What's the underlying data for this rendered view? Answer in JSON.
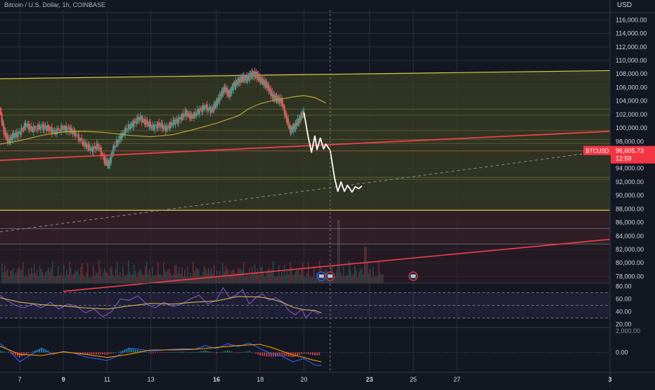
{
  "header": {
    "symbol_title": "Bitcoin / U.S. Dollar, 1h, COINBASE",
    "currency": "USD"
  },
  "price_tag": {
    "symbol": "BTCUSD",
    "price": "96,605.73",
    "countdown": "12:59"
  },
  "colors": {
    "background": "#131722",
    "grid": "#2a2e39",
    "up": "#26a69a",
    "down": "#ef5350",
    "channel": "#d4c94a",
    "zone_fill": "#3a3d22",
    "red_zone_fill": "#3a1f28",
    "support": "#f0414d",
    "projection": "#ffffff",
    "rsi": "#7e57c2",
    "macd_line": "#2962ff",
    "signal_line": "#ff9800",
    "tag": "#f23645"
  },
  "chart_data": [
    {
      "type": "line",
      "panel": "price",
      "y_axis_ticks": [
        "116,000.00",
        "114,000.00",
        "112,000.00",
        "110,000.00",
        "108,000.00",
        "106,000.00",
        "104,000.00",
        "102,000.00",
        "100,000.00",
        "98,000.00",
        "94,000.00",
        "92,000.00",
        "90,000.00",
        "88,000.00",
        "86,000.00",
        "84,000.00",
        "82,000.00",
        "80,000.00",
        "78,000.00"
      ],
      "x_axis_ticks": [
        "7",
        "9",
        "11",
        "13",
        "16",
        "18",
        "20",
        "23",
        "25",
        "27",
        "3"
      ],
      "x_ticks_day": [
        7,
        9,
        11,
        13,
        16,
        18,
        20,
        23,
        25,
        27,
        34
      ],
      "ylim": [
        77000,
        117500
      ],
      "xlim_day": [
        6.1,
        34
      ],
      "series": [
        {
          "role": "price",
          "x_day": [
            6.1,
            6.3,
            6.5,
            6.7,
            7.0,
            7.3,
            7.6,
            8.0,
            8.3,
            8.6,
            9.0,
            9.3,
            9.6,
            10.0,
            10.3,
            10.6,
            10.9,
            11.1,
            11.3,
            11.6,
            11.9,
            12.2,
            12.5,
            12.8,
            13.1,
            13.4,
            13.7,
            14.0,
            14.3,
            14.6,
            14.9,
            15.2,
            15.5,
            15.8,
            16.0,
            16.2,
            16.4,
            16.6,
            16.8,
            17.0,
            17.2,
            17.4,
            17.6,
            17.8,
            18.0,
            18.2,
            18.4,
            18.6,
            18.8,
            19.0,
            19.2,
            19.4,
            19.6,
            19.8,
            20.0
          ],
          "values": [
            103000,
            99500,
            98000,
            98800,
            99200,
            100500,
            99800,
            100200,
            100000,
            99400,
            100000,
            99800,
            99000,
            97500,
            96800,
            97400,
            95200,
            94500,
            97000,
            98500,
            99800,
            100600,
            101500,
            100800,
            100100,
            100500,
            99900,
            100700,
            101200,
            102200,
            101600,
            102500,
            103100,
            102600,
            103600,
            104800,
            105900,
            104900,
            106300,
            106900,
            107400,
            107300,
            107900,
            108000,
            107200,
            106700,
            105900,
            104600,
            104300,
            103900,
            101600,
            99600,
            100200,
            101300,
            102300
          ]
        },
        {
          "role": "moving_average",
          "x_day": [
            6.1,
            7.0,
            8.0,
            9.0,
            10.0,
            11.0,
            12.0,
            13.0,
            14.0,
            15.0,
            16.0,
            17.0,
            17.5,
            18.0,
            18.5,
            19.0,
            19.5,
            20.0,
            20.5,
            21.0
          ],
          "values": [
            97600,
            98100,
            98900,
            99400,
            99500,
            99300,
            98900,
            98700,
            99000,
            99800,
            100700,
            101800,
            102900,
            103600,
            104000,
            104300,
            104600,
            104800,
            104500,
            103700
          ]
        },
        {
          "role": "projection",
          "x_day": [
            20.0,
            20.2,
            20.35,
            20.5,
            20.6,
            20.75,
            20.9,
            21.0,
            21.2,
            21.4,
            21.55,
            21.7,
            21.85,
            22.0,
            22.2,
            22.35,
            22.5,
            22.65
          ],
          "values": [
            102300,
            98600,
            96400,
            98800,
            96800,
            98500,
            96900,
            97600,
            96700,
            92600,
            90600,
            92000,
            90600,
            91500,
            90500,
            91300,
            91000,
            91400
          ]
        }
      ],
      "annotations": {
        "channel_top": [
          {
            "x_day": 6.1,
            "y": 107300
          },
          {
            "x_day": 34,
            "y": 108500
          }
        ],
        "channel_bottom_y": 87800,
        "support_line": [
          {
            "x_day": 6.1,
            "y": 95200
          },
          {
            "x_day": 34,
            "y": 99500
          }
        ],
        "lower_trend": [
          {
            "x_day": 9.0,
            "y": 75800
          },
          {
            "x_day": 34,
            "y": 83500
          }
        ],
        "dashed_trend": [
          {
            "x_day": 6.1,
            "y": 84600
          },
          {
            "x_day": 34,
            "y": 96700
          }
        ],
        "horizontal_levels": [
          102800,
          101900,
          99600,
          98300,
          97700,
          96600,
          92700,
          92400,
          85100,
          82800
        ],
        "cursor_day": 21.2,
        "current_price": 96605.73,
        "event_markers_day": [
          20.8,
          21.2,
          25.0
        ]
      }
    },
    {
      "type": "bar",
      "panel": "volume",
      "note": "volume histogram overlaid at the bottom of the price pane"
    },
    {
      "type": "line",
      "panel": "rsi",
      "y_axis_ticks": [
        "80.00",
        "60.00",
        "40.00",
        "20.00"
      ],
      "ylim": [
        15,
        85
      ],
      "bands": [
        70,
        50,
        30
      ],
      "series": [
        {
          "role": "rsi",
          "x_day": [
            6.1,
            6.4,
            6.8,
            7.2,
            7.6,
            8.0,
            8.4,
            8.8,
            9.2,
            9.6,
            10.0,
            10.4,
            10.8,
            11.2,
            11.6,
            12.0,
            12.4,
            12.8,
            13.2,
            13.6,
            14.0,
            14.4,
            14.8,
            15.2,
            15.6,
            16.0,
            16.3,
            16.6,
            16.9,
            17.2,
            17.5,
            17.8,
            18.1,
            18.4,
            18.7,
            19.0,
            19.3,
            19.6,
            19.9,
            20.1,
            20.4,
            20.7
          ],
          "values": [
            66,
            58,
            50,
            46,
            52,
            46,
            55,
            44,
            52,
            49,
            38,
            44,
            32,
            40,
            60,
            58,
            65,
            52,
            46,
            55,
            48,
            52,
            60,
            66,
            52,
            58,
            78,
            62,
            66,
            75,
            52,
            62,
            68,
            58,
            62,
            56,
            42,
            35,
            44,
            30,
            42,
            36
          ]
        },
        {
          "role": "rsi_ma",
          "x_day": [
            6.1,
            7.0,
            8.0,
            9.0,
            10.0,
            11.0,
            12.0,
            13.0,
            14.0,
            15.0,
            16.0,
            17.0,
            18.0,
            18.5,
            19.0,
            19.5,
            20.0,
            20.5,
            20.8
          ],
          "values": [
            62,
            55,
            51,
            49,
            46,
            44,
            49,
            53,
            52,
            55,
            57,
            64,
            63,
            60,
            55,
            47,
            43,
            42,
            38
          ]
        }
      ]
    },
    {
      "type": "line",
      "panel": "macd",
      "y_axis_ticks": [
        "2,000.00",
        "0.00"
      ],
      "ylim": [
        -1600,
        2000
      ],
      "series": [
        {
          "role": "macd",
          "x_day": [
            6.1,
            6.5,
            7.0,
            7.5,
            8.0,
            8.5,
            9.0,
            9.5,
            10.0,
            10.5,
            11.0,
            11.5,
            12.0,
            12.5,
            13.0,
            13.5,
            14.0,
            14.5,
            15.0,
            15.5,
            16.0,
            16.5,
            17.0,
            17.5,
            18.0,
            18.5,
            19.0,
            19.5,
            20.0,
            20.5,
            20.8
          ],
          "values": [
            700,
            180,
            -750,
            -200,
            300,
            -150,
            80,
            -50,
            -350,
            -500,
            -650,
            -250,
            350,
            250,
            100,
            180,
            250,
            300,
            260,
            550,
            300,
            700,
            480,
            760,
            300,
            -100,
            -300,
            -750,
            -500,
            -1000,
            -1050
          ]
        },
        {
          "role": "signal",
          "x_day": [
            6.1,
            7.0,
            8.0,
            9.0,
            10.0,
            11.0,
            12.0,
            13.0,
            14.0,
            15.0,
            16.0,
            17.0,
            18.0,
            18.5,
            19.0,
            19.5,
            20.0,
            20.5,
            20.8
          ],
          "values": [
            500,
            -150,
            -250,
            50,
            -150,
            -400,
            -150,
            200,
            200,
            250,
            400,
            550,
            650,
            400,
            100,
            -200,
            -400,
            -650,
            -750
          ]
        }
      ]
    }
  ]
}
